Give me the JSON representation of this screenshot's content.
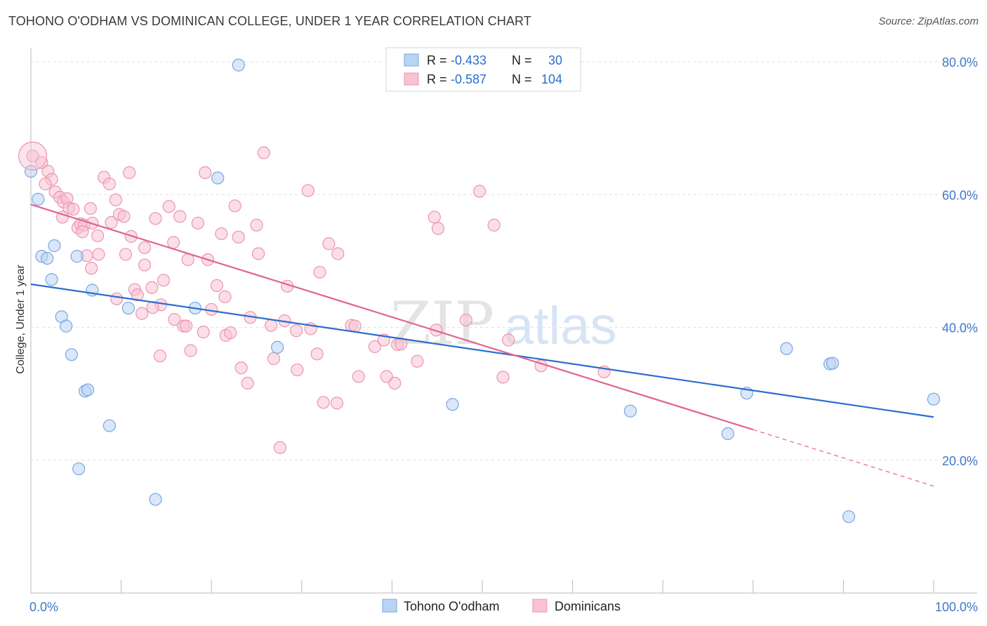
{
  "title": "TOHONO O'ODHAM VS DOMINICAN COLLEGE, UNDER 1 YEAR CORRELATION CHART",
  "source": "Source: ZipAtlas.com",
  "watermark": {
    "zip": "ZIP",
    "atlas": "atlas"
  },
  "colors": {
    "blue_fill": "#b9d3f3",
    "blue_stroke": "#7aa6e0",
    "blue_line": "#2a6dd0",
    "pink_fill": "#f7c3d3",
    "pink_stroke": "#ec95b0",
    "pink_line": "#e0648f",
    "axis_text": "#3f78c8",
    "grid": "#e2e2e2"
  },
  "legend_top": [
    {
      "r_label": "R =",
      "r_value": "-0.433",
      "n_label": "N =",
      "n_value": "30",
      "series": "Tohono O'odham"
    },
    {
      "r_label": "R =",
      "r_value": "-0.587",
      "n_label": "N =",
      "n_value": "104",
      "series": "Dominicans"
    }
  ],
  "chart_data": {
    "type": "scatter",
    "xlabel": "",
    "ylabel": "College, Under 1 year",
    "xlim": [
      0,
      100
    ],
    "ylim": [
      0,
      80
    ],
    "x_tick_labels": [
      {
        "value": 0,
        "label": "0.0%"
      },
      {
        "value": 100,
        "label": "100.0%"
      }
    ],
    "y_tick_labels": [
      {
        "value": 20,
        "label": "20.0%"
      },
      {
        "value": 40,
        "label": "40.0%"
      },
      {
        "value": 60,
        "label": "60.0%"
      },
      {
        "value": 80,
        "label": "80.0%"
      }
    ],
    "grid": true,
    "legend_position": "bottom-center",
    "series": [
      {
        "name": "Tohono O'odham",
        "color": "#b9d3f3",
        "trend": {
          "x0": 0,
          "y0": 46.5,
          "x1": 100,
          "y1": 26.5
        },
        "points": [
          [
            23.0,
            79.5
          ],
          [
            0.0,
            63.5
          ],
          [
            20.7,
            62.5
          ],
          [
            0.8,
            59.3
          ],
          [
            1.2,
            50.7
          ],
          [
            1.8,
            50.4
          ],
          [
            2.6,
            52.3
          ],
          [
            5.1,
            50.7
          ],
          [
            2.3,
            47.2
          ],
          [
            6.8,
            45.6
          ],
          [
            10.8,
            42.9
          ],
          [
            18.2,
            42.9
          ],
          [
            3.4,
            41.6
          ],
          [
            3.9,
            40.2
          ],
          [
            4.5,
            35.9
          ],
          [
            6.0,
            30.4
          ],
          [
            6.3,
            30.6
          ],
          [
            8.7,
            25.2
          ],
          [
            5.3,
            18.7
          ],
          [
            13.8,
            14.1
          ],
          [
            27.3,
            37.0
          ],
          [
            46.7,
            28.4
          ],
          [
            66.4,
            27.4
          ],
          [
            77.2,
            24.0
          ],
          [
            79.3,
            30.1
          ],
          [
            83.7,
            36.8
          ],
          [
            88.5,
            34.5
          ],
          [
            88.8,
            34.6
          ],
          [
            90.6,
            11.5
          ],
          [
            100.0,
            29.2
          ]
        ]
      },
      {
        "name": "Dominicans",
        "color": "#f7c3d3",
        "trend": {
          "x0": 0,
          "y0": 58.5,
          "x1": 80,
          "y1": 24.6,
          "x_dash_end": 100,
          "y_dash_end": 16.1
        },
        "points": [
          [
            0.2,
            65.8
          ],
          [
            1.2,
            64.8
          ],
          [
            1.9,
            63.5
          ],
          [
            2.3,
            62.3
          ],
          [
            1.6,
            61.6
          ],
          [
            2.7,
            60.4
          ],
          [
            3.2,
            59.6
          ],
          [
            3.6,
            58.9
          ],
          [
            4.0,
            59.4
          ],
          [
            4.2,
            58.0
          ],
          [
            3.5,
            56.6
          ],
          [
            4.7,
            57.8
          ],
          [
            5.2,
            55.0
          ],
          [
            5.5,
            55.6
          ],
          [
            5.9,
            55.4
          ],
          [
            6.6,
            57.9
          ],
          [
            6.8,
            55.7
          ],
          [
            7.4,
            53.8
          ],
          [
            7.5,
            51.0
          ],
          [
            8.1,
            62.6
          ],
          [
            8.7,
            61.6
          ],
          [
            8.9,
            55.8
          ],
          [
            9.4,
            59.2
          ],
          [
            9.8,
            57.0
          ],
          [
            10.3,
            56.7
          ],
          [
            10.5,
            51.0
          ],
          [
            10.9,
            63.3
          ],
          [
            11.1,
            53.7
          ],
          [
            11.5,
            45.7
          ],
          [
            11.8,
            44.9
          ],
          [
            12.6,
            52.0
          ],
          [
            12.6,
            49.4
          ],
          [
            13.4,
            46.0
          ],
          [
            13.8,
            56.4
          ],
          [
            14.4,
            43.4
          ],
          [
            14.7,
            47.1
          ],
          [
            15.3,
            58.2
          ],
          [
            15.8,
            52.8
          ],
          [
            15.9,
            41.2
          ],
          [
            16.5,
            56.7
          ],
          [
            16.9,
            40.2
          ],
          [
            17.4,
            50.2
          ],
          [
            17.7,
            36.5
          ],
          [
            18.5,
            55.7
          ],
          [
            19.1,
            39.3
          ],
          [
            19.3,
            63.3
          ],
          [
            19.6,
            50.2
          ],
          [
            20.0,
            42.7
          ],
          [
            20.6,
            46.3
          ],
          [
            21.1,
            54.1
          ],
          [
            21.6,
            38.8
          ],
          [
            22.1,
            39.2
          ],
          [
            22.6,
            58.3
          ],
          [
            23.0,
            53.6
          ],
          [
            23.3,
            33.9
          ],
          [
            24.0,
            31.6
          ],
          [
            25.0,
            55.4
          ],
          [
            25.2,
            51.1
          ],
          [
            25.8,
            66.3
          ],
          [
            26.6,
            40.3
          ],
          [
            27.6,
            21.9
          ],
          [
            28.1,
            41.0
          ],
          [
            28.4,
            46.2
          ],
          [
            29.4,
            39.5
          ],
          [
            29.5,
            33.6
          ],
          [
            30.7,
            60.6
          ],
          [
            31.0,
            39.8
          ],
          [
            31.7,
            36.0
          ],
          [
            32.0,
            48.3
          ],
          [
            32.4,
            28.7
          ],
          [
            33.0,
            52.6
          ],
          [
            34.0,
            51.1
          ],
          [
            33.9,
            28.6
          ],
          [
            35.5,
            40.3
          ],
          [
            35.9,
            40.2
          ],
          [
            36.3,
            32.6
          ],
          [
            38.1,
            37.1
          ],
          [
            39.1,
            38.1
          ],
          [
            39.4,
            32.6
          ],
          [
            40.3,
            31.6
          ],
          [
            40.6,
            37.4
          ],
          [
            41.0,
            37.5
          ],
          [
            42.8,
            34.9
          ],
          [
            44.7,
            56.6
          ],
          [
            45.1,
            54.9
          ],
          [
            44.9,
            39.6
          ],
          [
            48.2,
            41.1
          ],
          [
            49.7,
            60.5
          ],
          [
            51.3,
            55.4
          ],
          [
            52.3,
            32.5
          ],
          [
            52.9,
            38.1
          ],
          [
            56.5,
            34.2
          ],
          [
            63.5,
            33.3
          ],
          [
            5.7,
            54.4
          ],
          [
            6.7,
            48.9
          ],
          [
            9.5,
            44.3
          ],
          [
            12.3,
            42.1
          ],
          [
            14.3,
            35.7
          ],
          [
            17.2,
            40.2
          ],
          [
            21.5,
            44.6
          ],
          [
            24.3,
            41.5
          ],
          [
            26.9,
            35.3
          ],
          [
            13.5,
            43.0
          ],
          [
            6.2,
            50.8
          ]
        ]
      }
    ]
  }
}
